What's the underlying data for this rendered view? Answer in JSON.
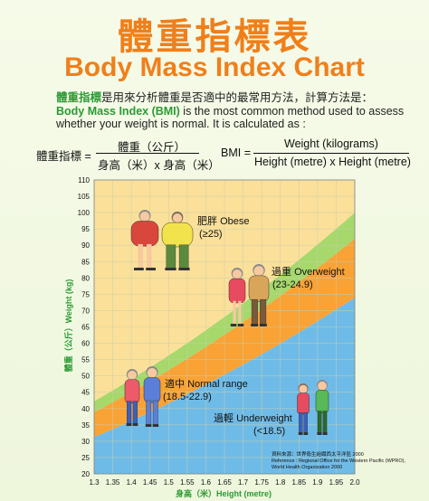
{
  "header": {
    "title_cn": "體重指標表",
    "title_en": "Body Mass Index Chart"
  },
  "intro": {
    "line1_highlight": "體重指標",
    "line1_rest": "是用來分析體重是否適中的最常用方法，計算方法是：",
    "line2_highlight": "Body Mass Index (BMI)",
    "line2_rest": " is the most common method used to assess",
    "line3": "whether your weight is normal. It is calculated as :"
  },
  "formula_cn": {
    "label": "體重指標 =",
    "numerator": "體重（公斤）",
    "denominator": "身高（米）x 身高（米）"
  },
  "formula_en": {
    "label": "BMI =",
    "numerator": "Weight (kilograms)",
    "denominator": "Height (metre) x Height (metre)"
  },
  "source": {
    "line1": "資料來源：世界衞生組織西太平洋區 2000",
    "line2": "Reference : Regional Office for the Western Pacific (WPRO),",
    "line3": "World Health Organization 2000"
  },
  "colors": {
    "underweight": "#6fbbe8",
    "normal": "#f9a236",
    "overweight": "#a6d86c",
    "obese": "#fbe09a",
    "grid": "#c8cfa8",
    "axis_label": "#2b9a34"
  },
  "chart_data": {
    "type": "area",
    "x_label": "身高（米）Height (metre)",
    "y_label": "體重（公斤）Weight (kg)",
    "xlim": [
      1.3,
      2.0
    ],
    "ylim": [
      20,
      110
    ],
    "x_ticks": [
      "1.3",
      "1.35",
      "1.4",
      "1.45",
      "1.5",
      "1.55",
      "1.6",
      "1.65",
      "1.7",
      "1.75",
      "1.8",
      "1.85",
      "1.9",
      "1.95",
      "2.0"
    ],
    "y_ticks": [
      "20",
      "25",
      "30",
      "35",
      "40",
      "45",
      "50",
      "55",
      "60",
      "65",
      "70",
      "75",
      "80",
      "85",
      "90",
      "95",
      "100",
      "105",
      "110"
    ],
    "grid": true,
    "bmi_boundaries": [
      18.5,
      23,
      25
    ],
    "bands": [
      {
        "name_cn": "過輕",
        "name_en": "Underweight",
        "range": "(<18.5)",
        "bmi_min": null,
        "bmi_max": 18.5
      },
      {
        "name_cn": "適中",
        "name_en": "Normal range",
        "range": "(18.5-22.9)",
        "bmi_min": 18.5,
        "bmi_max": 23
      },
      {
        "name_cn": "過重",
        "name_en": "Overweight",
        "range": "(23-24.9)",
        "bmi_min": 23,
        "bmi_max": 25
      },
      {
        "name_cn": "肥胖",
        "name_en": "Obese",
        "range": "(≥25)",
        "bmi_min": 25,
        "bmi_max": null
      }
    ]
  }
}
